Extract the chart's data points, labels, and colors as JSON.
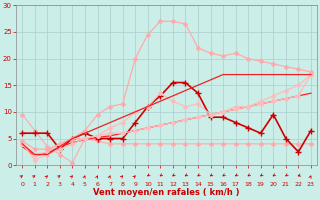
{
  "title": "",
  "xlabel": "Vent moyen/en rafales ( km/h )",
  "ylabel": "",
  "background_color": "#cceee8",
  "grid_color": "#aacccc",
  "text_color": "#cc0000",
  "xlim": [
    -0.5,
    23.5
  ],
  "ylim": [
    0,
    30
  ],
  "xticks": [
    0,
    1,
    2,
    3,
    4,
    5,
    6,
    7,
    8,
    9,
    10,
    11,
    12,
    13,
    14,
    15,
    16,
    17,
    18,
    19,
    20,
    21,
    22,
    23
  ],
  "yticks": [
    0,
    5,
    10,
    15,
    20,
    25,
    30
  ],
  "lines": [
    {
      "x": [
        0,
        1,
        2,
        3,
        4,
        5,
        6,
        7,
        8,
        9,
        10,
        11,
        12,
        13,
        14,
        15,
        16,
        17,
        18,
        19,
        20,
        21,
        22,
        23
      ],
      "y": [
        9.5,
        6.5,
        3.5,
        2.0,
        0.5,
        5,
        4.5,
        4,
        4,
        4,
        4,
        4,
        4,
        4,
        4,
        4,
        4,
        4,
        4,
        4,
        4,
        4,
        4,
        4
      ],
      "color": "#ffaaaa",
      "lw": 0.8,
      "marker": "D",
      "ms": 2.0
    },
    {
      "x": [
        0,
        1,
        2,
        3,
        4,
        5,
        6,
        7,
        8,
        9,
        10,
        11,
        12,
        13,
        14,
        15,
        16,
        17,
        18,
        19,
        20,
        21,
        22,
        23
      ],
      "y": [
        6,
        6,
        6,
        3,
        5,
        6,
        5,
        5,
        5,
        8,
        11,
        13,
        15.5,
        15.5,
        13.5,
        9,
        9,
        8,
        7,
        6,
        9.5,
        5,
        2.5,
        6.5
      ],
      "color": "#cc0000",
      "lw": 1.2,
      "marker": "+",
      "ms": 4
    },
    {
      "x": [
        0,
        1,
        2,
        3,
        4,
        5,
        6,
        7,
        8,
        9,
        10,
        11,
        12,
        13,
        14,
        15,
        16,
        17,
        18,
        19,
        20,
        21,
        22,
        23
      ],
      "y": [
        3.5,
        1.8,
        2.2,
        3.5,
        4.2,
        4.8,
        5.2,
        5.5,
        6,
        6.5,
        7,
        7.5,
        8,
        8.5,
        9,
        9.5,
        10,
        10.5,
        11,
        11.5,
        12,
        12.5,
        13,
        13.5
      ],
      "color": "#ff2222",
      "lw": 0.9,
      "marker": null,
      "ms": 0
    },
    {
      "x": [
        0,
        1,
        2,
        3,
        4,
        5,
        6,
        7,
        8,
        9,
        10,
        11,
        12,
        13,
        14,
        15,
        16,
        17,
        18,
        19,
        20,
        21,
        22,
        23
      ],
      "y": [
        4,
        2,
        2.5,
        4,
        5,
        5,
        5.5,
        6,
        6,
        6.5,
        7,
        7.5,
        8,
        8.5,
        9,
        9.5,
        10,
        10.5,
        11,
        11.5,
        12,
        12.5,
        13,
        17
      ],
      "color": "#ffbbbb",
      "lw": 0.9,
      "marker": "D",
      "ms": 2.0
    },
    {
      "x": [
        0,
        1,
        2,
        3,
        4,
        5,
        6,
        7,
        8,
        9,
        10,
        11,
        12,
        13,
        14,
        15,
        16,
        17,
        18,
        19,
        20,
        21,
        22,
        23
      ],
      "y": [
        4,
        1,
        2,
        3,
        4,
        5,
        5.5,
        7,
        8,
        10,
        11,
        13.5,
        12,
        11,
        11.5,
        9.5,
        10,
        11,
        11,
        12,
        13,
        14,
        15,
        17
      ],
      "color": "#ffbbbb",
      "lw": 0.9,
      "marker": "D",
      "ms": 2.0
    },
    {
      "x": [
        0,
        1,
        2,
        3,
        4,
        5,
        6,
        7,
        8,
        9,
        10,
        11,
        12,
        13,
        14,
        15,
        16,
        17,
        18,
        19,
        20,
        21,
        22,
        23
      ],
      "y": [
        4.5,
        3,
        3,
        4,
        5,
        6.5,
        9.5,
        11,
        11.5,
        20,
        24.5,
        27,
        27,
        26.5,
        22,
        21,
        20.5,
        21,
        20,
        19.5,
        19,
        18.5,
        18,
        17.5
      ],
      "color": "#ffaaaa",
      "lw": 0.9,
      "marker": "D",
      "ms": 2.0
    },
    {
      "x": [
        0,
        1,
        2,
        3,
        4,
        5,
        6,
        7,
        8,
        9,
        10,
        11,
        12,
        13,
        14,
        15,
        16,
        17,
        18,
        19,
        20,
        21,
        22,
        23
      ],
      "y": [
        4,
        2,
        2,
        3.5,
        5,
        6,
        7,
        8,
        9,
        10,
        11,
        12,
        13,
        14,
        15,
        16,
        17,
        17,
        17,
        17,
        17,
        17,
        17,
        17
      ],
      "color": "#ee2222",
      "lw": 0.9,
      "marker": null,
      "ms": 0
    }
  ],
  "figsize": [
    3.2,
    2.0
  ],
  "dpi": 100
}
